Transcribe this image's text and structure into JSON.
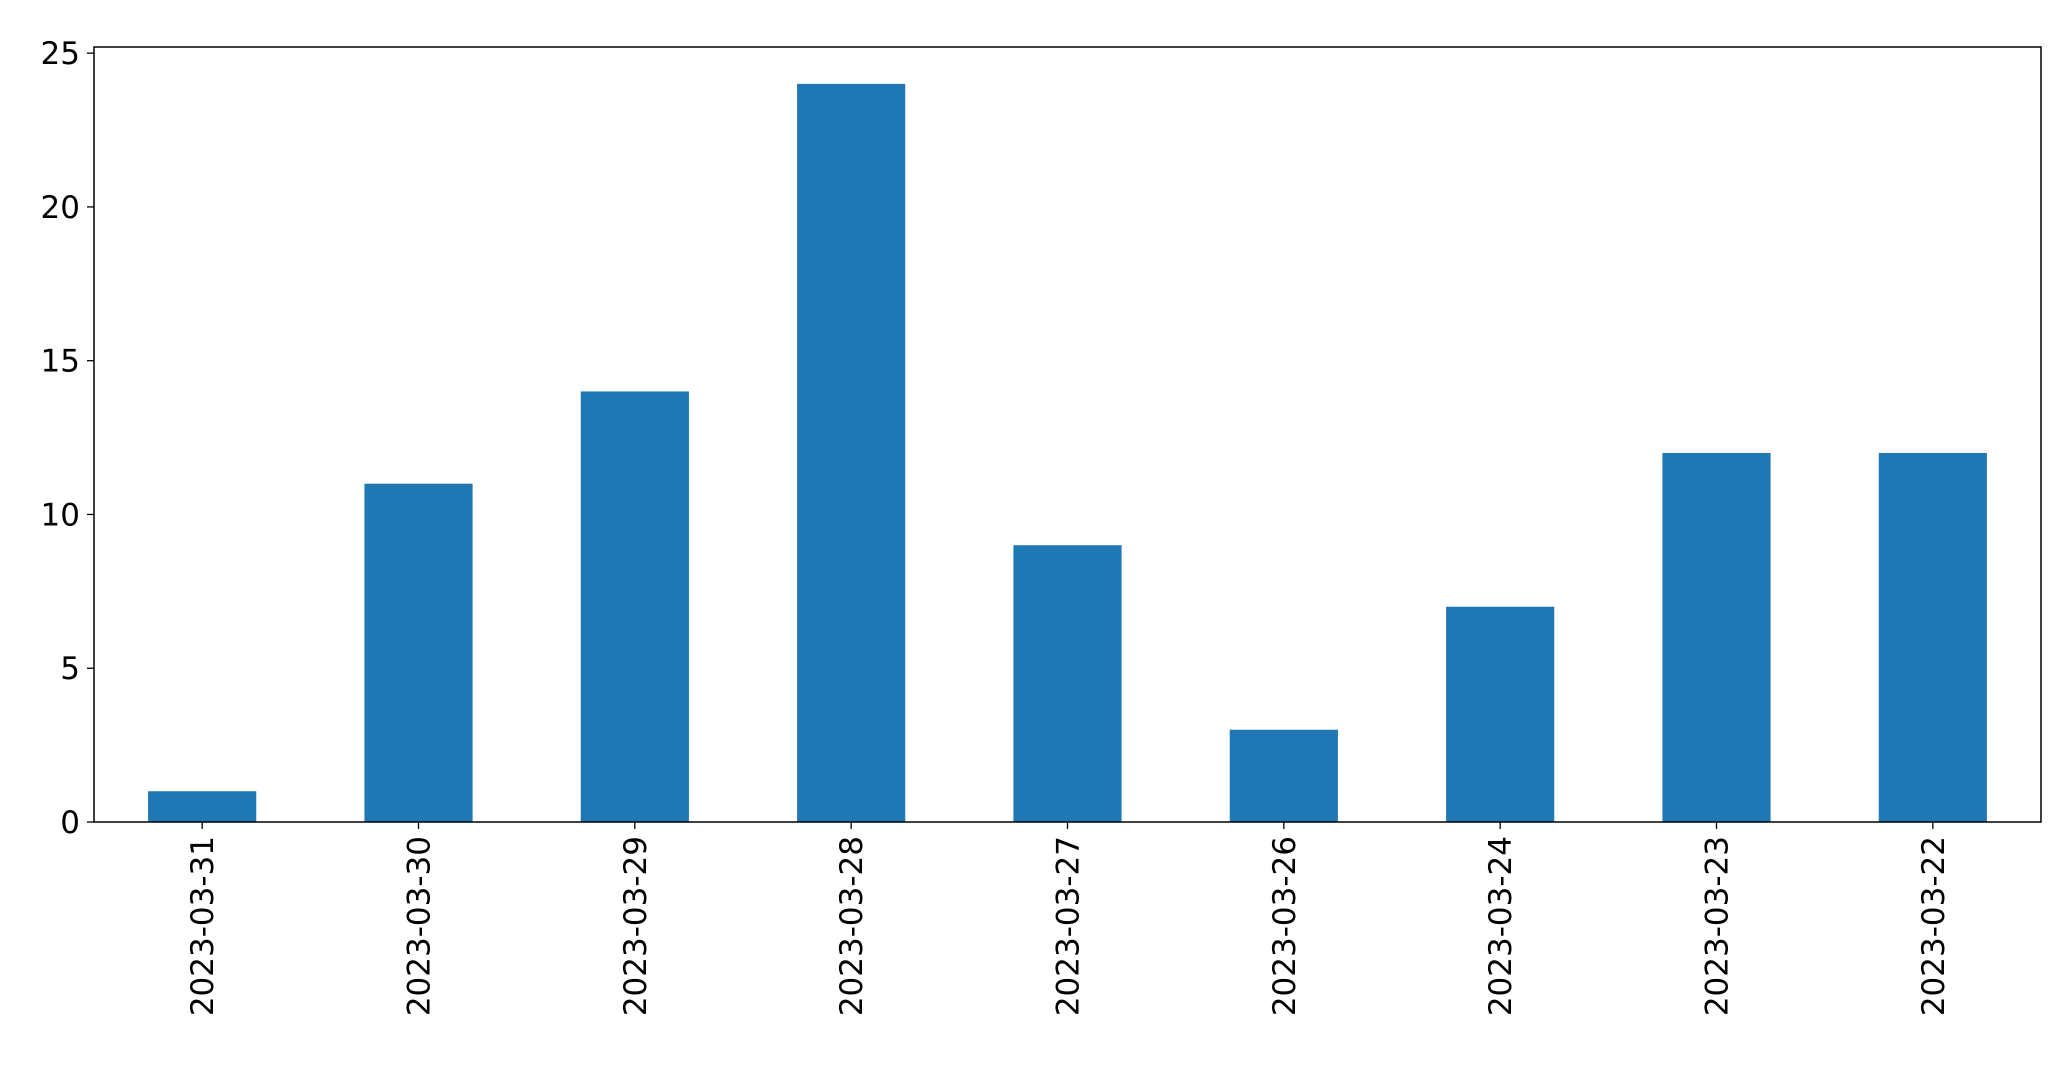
{
  "chart_data": {
    "type": "bar",
    "title": "",
    "xlabel": "",
    "ylabel": "",
    "categories": [
      "2023-03-31",
      "2023-03-30",
      "2023-03-29",
      "2023-03-28",
      "2023-03-27",
      "2023-03-26",
      "2023-03-24",
      "2023-03-23",
      "2023-03-22"
    ],
    "values": [
      1,
      11,
      14,
      24,
      9,
      3,
      7,
      12,
      12
    ],
    "ylim": [
      0,
      25.2
    ],
    "yticks": [
      0,
      5,
      10,
      15,
      20,
      25
    ],
    "bar_color": "#1f77b4",
    "grid": false,
    "legend": "none"
  }
}
